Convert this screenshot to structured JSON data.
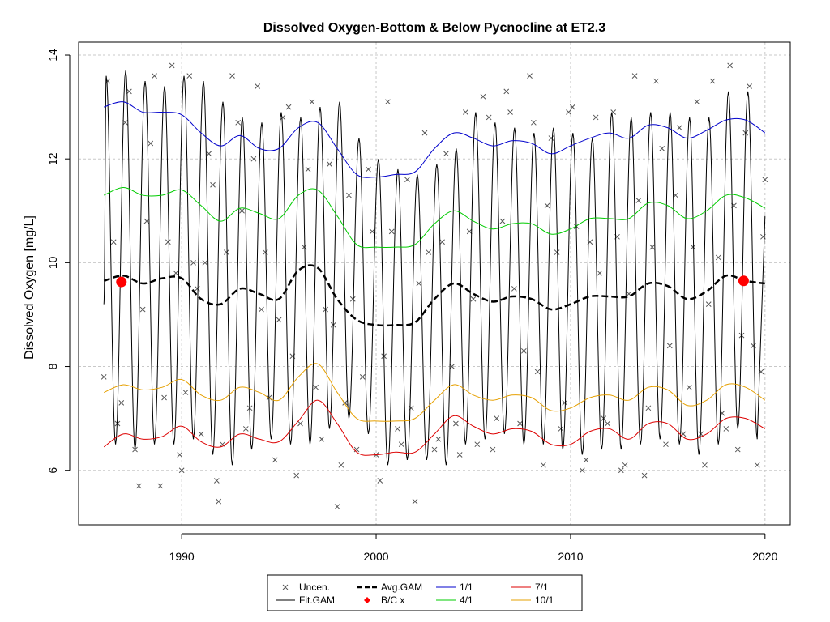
{
  "chart_data": {
    "type": "line",
    "title": "Dissolved Oxygen-Bottom & Below Pycnocline at ET2.3",
    "xlabel": "",
    "ylabel": "Dissolved Oxygen [mg/L]",
    "xlim": [
      1984.7,
      2021.3
    ],
    "ylim": [
      4.95,
      14.25
    ],
    "x_ticks": [
      1990,
      2000,
      2010,
      2020
    ],
    "y_ticks": [
      6,
      8,
      10,
      12,
      14
    ],
    "grid": true,
    "legend_position": "bottom-center",
    "fit_gam": {
      "name": "Fit.GAM",
      "color": "#000000",
      "start": 1986.0,
      "end": 2020.0,
      "description_points_per_year": 1,
      "peaks": [
        13.6,
        13.7,
        13.5,
        13.4,
        13.6,
        13.5,
        13.1,
        12.8,
        12.7,
        12.9,
        12.8,
        13.0,
        13.1,
        12.4,
        12.0,
        11.8,
        11.7,
        11.9,
        12.2,
        12.9,
        12.7,
        12.6,
        12.5,
        12.6,
        12.5,
        12.4,
        12.9,
        12.8,
        12.9,
        12.9,
        12.8,
        12.8,
        13.3,
        13.3,
        12.9
      ],
      "troughs": [
        6.5,
        6.4,
        6.5,
        6.5,
        6.6,
        6.3,
        6.1,
        6.4,
        6.6,
        6.5,
        6.5,
        6.8,
        7.0,
        6.7,
        6.1,
        6.2,
        6.2,
        6.1,
        6.5,
        6.6,
        6.7,
        6.5,
        6.5,
        6.4,
        6.3,
        6.4,
        6.4,
        6.5,
        6.6,
        6.5,
        6.3,
        6.5,
        6.8,
        6.6,
        6.5
      ]
    },
    "series": [
      {
        "name": "1/1",
        "color": "#0000cc",
        "x": [
          1986,
          1987,
          1988,
          1989,
          1990,
          1991,
          1992,
          1993,
          1994,
          1995,
          1996,
          1997,
          1998,
          1999,
          2000,
          2001,
          2002,
          2003,
          2004,
          2005,
          2006,
          2007,
          2008,
          2009,
          2010,
          2011,
          2012,
          2013,
          2014,
          2015,
          2016,
          2017,
          2018,
          2019,
          2020
        ],
        "y": [
          13.0,
          13.1,
          12.9,
          12.9,
          12.85,
          12.5,
          12.25,
          12.45,
          12.2,
          12.2,
          12.6,
          12.7,
          12.2,
          11.7,
          11.65,
          11.7,
          11.75,
          12.2,
          12.5,
          12.4,
          12.25,
          12.35,
          12.3,
          12.1,
          12.25,
          12.4,
          12.5,
          12.4,
          12.65,
          12.6,
          12.4,
          12.55,
          12.75,
          12.75,
          12.5
        ]
      },
      {
        "name": "4/1",
        "color": "#00cc00",
        "x": [
          1986,
          1987,
          1988,
          1989,
          1990,
          1991,
          1992,
          1993,
          1994,
          1995,
          1996,
          1997,
          1998,
          1999,
          2000,
          2001,
          2002,
          2003,
          2004,
          2005,
          2006,
          2007,
          2008,
          2009,
          2010,
          2011,
          2012,
          2013,
          2014,
          2015,
          2016,
          2017,
          2018,
          2019,
          2020
        ],
        "y": [
          11.3,
          11.45,
          11.3,
          11.3,
          11.4,
          11.1,
          10.8,
          11.05,
          10.95,
          10.85,
          11.3,
          11.4,
          10.9,
          10.35,
          10.3,
          10.3,
          10.35,
          10.75,
          11.0,
          10.8,
          10.65,
          10.75,
          10.75,
          10.55,
          10.65,
          10.85,
          10.85,
          10.85,
          11.15,
          11.1,
          10.85,
          11.0,
          11.3,
          11.25,
          11.05
        ]
      },
      {
        "name": "Avg.GAM",
        "color": "#000000",
        "x": [
          1986,
          1987,
          1988,
          1989,
          1990,
          1991,
          1992,
          1993,
          1994,
          1995,
          1996,
          1997,
          1998,
          1999,
          2000,
          2001,
          2002,
          2003,
          2004,
          2005,
          2006,
          2007,
          2008,
          2009,
          2010,
          2011,
          2012,
          2013,
          2014,
          2015,
          2016,
          2017,
          2018,
          2019,
          2020
        ],
        "y": [
          9.65,
          9.75,
          9.6,
          9.7,
          9.7,
          9.3,
          9.2,
          9.5,
          9.4,
          9.3,
          9.85,
          9.9,
          9.3,
          8.9,
          8.8,
          8.8,
          8.85,
          9.3,
          9.6,
          9.4,
          9.25,
          9.35,
          9.3,
          9.1,
          9.2,
          9.35,
          9.35,
          9.35,
          9.6,
          9.55,
          9.3,
          9.45,
          9.75,
          9.65,
          9.6
        ]
      },
      {
        "name": "10/1",
        "color": "#e6a000",
        "x": [
          1986,
          1987,
          1988,
          1989,
          1990,
          1991,
          1992,
          1993,
          1994,
          1995,
          1996,
          1997,
          1998,
          1999,
          2000,
          2001,
          2002,
          2003,
          2004,
          2005,
          2006,
          2007,
          2008,
          2009,
          2010,
          2011,
          2012,
          2013,
          2014,
          2015,
          2016,
          2017,
          2018,
          2019,
          2020
        ],
        "y": [
          7.5,
          7.65,
          7.55,
          7.6,
          7.75,
          7.45,
          7.35,
          7.6,
          7.5,
          7.35,
          7.8,
          8.05,
          7.5,
          7.0,
          6.95,
          6.95,
          7.0,
          7.35,
          7.65,
          7.45,
          7.35,
          7.45,
          7.4,
          7.15,
          7.2,
          7.4,
          7.45,
          7.35,
          7.6,
          7.55,
          7.25,
          7.35,
          7.65,
          7.6,
          7.35
        ]
      },
      {
        "name": "7/1",
        "color": "#dd0000",
        "x": [
          1986,
          1987,
          1988,
          1989,
          1990,
          1991,
          1992,
          1993,
          1994,
          1995,
          1996,
          1997,
          1998,
          1999,
          2000,
          2001,
          2002,
          2003,
          2004,
          2005,
          2006,
          2007,
          2008,
          2009,
          2010,
          2011,
          2012,
          2013,
          2014,
          2015,
          2016,
          2017,
          2018,
          2019,
          2020
        ],
        "y": [
          6.45,
          6.7,
          6.6,
          6.65,
          6.85,
          6.55,
          6.45,
          6.7,
          6.6,
          6.55,
          6.95,
          7.35,
          6.9,
          6.35,
          6.3,
          6.35,
          6.35,
          6.7,
          7.05,
          6.85,
          6.7,
          6.8,
          6.75,
          6.5,
          6.5,
          6.75,
          6.8,
          6.6,
          6.9,
          6.9,
          6.6,
          6.7,
          7.0,
          7.0,
          6.8
        ]
      }
    ],
    "uncensored": {
      "name": "Uncen.",
      "color": "#555555",
      "points": [
        [
          1986.0,
          7.8
        ],
        [
          1986.2,
          13.5
        ],
        [
          1986.5,
          10.4
        ],
        [
          1986.7,
          6.9
        ],
        [
          1986.9,
          7.3
        ],
        [
          1987.1,
          12.7
        ],
        [
          1987.3,
          13.3
        ],
        [
          1987.6,
          6.4
        ],
        [
          1987.8,
          5.7
        ],
        [
          1988.0,
          9.1
        ],
        [
          1988.2,
          10.8
        ],
        [
          1988.4,
          12.3
        ],
        [
          1988.6,
          13.6
        ],
        [
          1988.9,
          5.7
        ],
        [
          1989.1,
          7.4
        ],
        [
          1989.3,
          10.4
        ],
        [
          1989.5,
          13.8
        ],
        [
          1989.7,
          9.8
        ],
        [
          1989.9,
          6.3
        ],
        [
          1990.0,
          6.0
        ],
        [
          1990.2,
          7.5
        ],
        [
          1990.4,
          13.6
        ],
        [
          1990.6,
          10.0
        ],
        [
          1990.8,
          9.5
        ],
        [
          1991.0,
          6.7
        ],
        [
          1991.2,
          10.0
        ],
        [
          1991.4,
          12.1
        ],
        [
          1991.6,
          11.5
        ],
        [
          1991.8,
          5.8
        ],
        [
          1991.9,
          5.4
        ],
        [
          1992.1,
          6.5
        ],
        [
          1992.3,
          10.2
        ],
        [
          1992.6,
          13.6
        ],
        [
          1992.9,
          12.7
        ],
        [
          1993.1,
          11.0
        ],
        [
          1993.3,
          6.8
        ],
        [
          1993.5,
          7.2
        ],
        [
          1993.7,
          12.0
        ],
        [
          1993.9,
          13.4
        ],
        [
          1994.1,
          9.1
        ],
        [
          1994.3,
          10.2
        ],
        [
          1994.5,
          7.4
        ],
        [
          1994.8,
          6.2
        ],
        [
          1995.0,
          8.9
        ],
        [
          1995.2,
          12.8
        ],
        [
          1995.5,
          13.0
        ],
        [
          1995.7,
          8.2
        ],
        [
          1995.9,
          5.9
        ],
        [
          1996.1,
          6.9
        ],
        [
          1996.3,
          10.3
        ],
        [
          1996.5,
          11.8
        ],
        [
          1996.7,
          13.1
        ],
        [
          1996.9,
          7.6
        ],
        [
          1997.2,
          6.6
        ],
        [
          1997.4,
          9.1
        ],
        [
          1997.6,
          11.9
        ],
        [
          1997.8,
          8.8
        ],
        [
          1998.0,
          5.3
        ],
        [
          1998.2,
          6.1
        ],
        [
          1998.4,
          7.3
        ],
        [
          1998.6,
          11.3
        ],
        [
          1998.8,
          9.3
        ],
        [
          1999.0,
          6.4
        ],
        [
          1999.3,
          7.8
        ],
        [
          1999.6,
          11.8
        ],
        [
          1999.8,
          10.6
        ],
        [
          2000.0,
          6.3
        ],
        [
          2000.2,
          5.8
        ],
        [
          2000.4,
          8.2
        ],
        [
          2000.6,
          13.1
        ],
        [
          2000.8,
          10.6
        ],
        [
          2001.1,
          6.8
        ],
        [
          2001.3,
          6.5
        ],
        [
          2001.6,
          11.6
        ],
        [
          2001.8,
          7.2
        ],
        [
          2002.0,
          5.4
        ],
        [
          2002.2,
          9.6
        ],
        [
          2002.5,
          12.5
        ],
        [
          2002.7,
          10.2
        ],
        [
          2003.0,
          6.4
        ],
        [
          2003.2,
          6.6
        ],
        [
          2003.4,
          10.4
        ],
        [
          2003.6,
          12.1
        ],
        [
          2003.9,
          8.0
        ],
        [
          2004.1,
          6.9
        ],
        [
          2004.3,
          6.3
        ],
        [
          2004.6,
          12.9
        ],
        [
          2004.8,
          10.6
        ],
        [
          2005.0,
          9.3
        ],
        [
          2005.2,
          6.5
        ],
        [
          2005.5,
          13.2
        ],
        [
          2005.8,
          12.8
        ],
        [
          2006.0,
          6.4
        ],
        [
          2006.2,
          7.0
        ],
        [
          2006.5,
          10.8
        ],
        [
          2006.7,
          13.3
        ],
        [
          2006.9,
          12.9
        ],
        [
          2007.1,
          9.5
        ],
        [
          2007.4,
          6.9
        ],
        [
          2007.6,
          8.3
        ],
        [
          2007.9,
          13.6
        ],
        [
          2008.1,
          12.7
        ],
        [
          2008.3,
          7.9
        ],
        [
          2008.6,
          6.1
        ],
        [
          2008.8,
          11.1
        ],
        [
          2009.0,
          12.4
        ],
        [
          2009.3,
          10.2
        ],
        [
          2009.5,
          6.8
        ],
        [
          2009.7,
          7.3
        ],
        [
          2009.9,
          12.9
        ],
        [
          2010.1,
          13.0
        ],
        [
          2010.3,
          10.7
        ],
        [
          2010.6,
          6.0
        ],
        [
          2010.8,
          6.2
        ],
        [
          2011.0,
          10.4
        ],
        [
          2011.3,
          12.8
        ],
        [
          2011.5,
          9.8
        ],
        [
          2011.7,
          7.0
        ],
        [
          2011.9,
          6.9
        ],
        [
          2012.2,
          12.9
        ],
        [
          2012.4,
          10.5
        ],
        [
          2012.6,
          6.0
        ],
        [
          2012.8,
          6.1
        ],
        [
          2013.0,
          9.4
        ],
        [
          2013.3,
          13.6
        ],
        [
          2013.5,
          11.2
        ],
        [
          2013.8,
          5.9
        ],
        [
          2014.0,
          7.2
        ],
        [
          2014.2,
          10.3
        ],
        [
          2014.4,
          13.5
        ],
        [
          2014.7,
          12.2
        ],
        [
          2014.9,
          6.5
        ],
        [
          2015.1,
          8.4
        ],
        [
          2015.4,
          11.3
        ],
        [
          2015.6,
          12.6
        ],
        [
          2015.8,
          6.7
        ],
        [
          2016.1,
          7.6
        ],
        [
          2016.3,
          10.3
        ],
        [
          2016.5,
          13.1
        ],
        [
          2016.7,
          6.7
        ],
        [
          2016.9,
          6.1
        ],
        [
          2017.1,
          9.2
        ],
        [
          2017.3,
          13.5
        ],
        [
          2017.6,
          10.1
        ],
        [
          2017.8,
          7.1
        ],
        [
          2018.0,
          6.8
        ],
        [
          2018.2,
          13.8
        ],
        [
          2018.4,
          11.1
        ],
        [
          2018.6,
          6.4
        ],
        [
          2018.8,
          8.6
        ],
        [
          2019.0,
          12.5
        ],
        [
          2019.2,
          13.4
        ],
        [
          2019.4,
          8.4
        ],
        [
          2019.6,
          6.1
        ],
        [
          2019.8,
          7.9
        ],
        [
          2019.9,
          10.5
        ],
        [
          2020.0,
          11.6
        ]
      ]
    },
    "censored": {
      "name": "B/C x",
      "color": "#ff0000",
      "points": [
        [
          1986.9,
          9.63
        ],
        [
          2018.9,
          9.65
        ]
      ]
    },
    "legend": {
      "items": [
        {
          "label": "Uncen.",
          "kind": "x",
          "color": "#555555"
        },
        {
          "label": "Fit.GAM",
          "kind": "line",
          "color": "#000000"
        },
        {
          "label": "Avg.GAM",
          "kind": "dash",
          "color": "#000000"
        },
        {
          "label": "B/C x",
          "kind": "diamond",
          "color": "#ff0000"
        },
        {
          "label": "1/1",
          "kind": "line",
          "color": "#0000cc"
        },
        {
          "label": "4/1",
          "kind": "line",
          "color": "#00cc00"
        },
        {
          "label": "7/1",
          "kind": "line",
          "color": "#dd0000"
        },
        {
          "label": "10/1",
          "kind": "line",
          "color": "#e6a000"
        }
      ]
    }
  }
}
